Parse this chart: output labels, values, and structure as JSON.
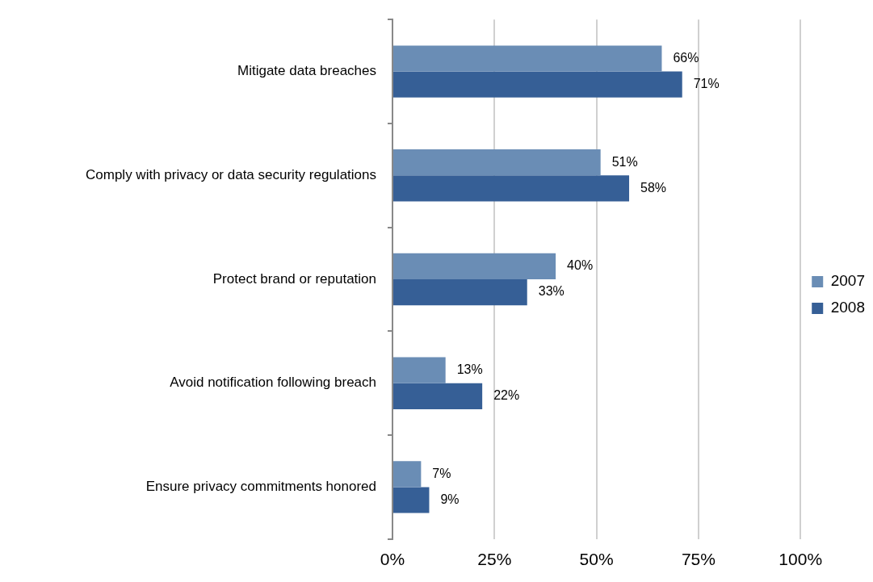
{
  "chart_data": {
    "type": "bar",
    "orientation": "horizontal",
    "categories": [
      "Mitigate data breaches",
      "Comply with privacy or data security regulations",
      "Protect brand or reputation",
      "Avoid notification following breach",
      "Ensure privacy commitments honored"
    ],
    "series": [
      {
        "name": "2007",
        "color": "#6a8db5",
        "values": [
          66,
          51,
          40,
          13,
          7
        ],
        "value_labels": [
          "66%",
          "51%",
          "40%",
          "13%",
          "7%"
        ]
      },
      {
        "name": "2008",
        "color": "#365f96",
        "values": [
          71,
          58,
          33,
          22,
          9
        ],
        "value_labels": [
          "71%",
          "58%",
          "33%",
          "22%",
          "9%"
        ]
      }
    ],
    "xlim": [
      0,
      100
    ],
    "xticks": [
      {
        "value": 0,
        "label": "0%"
      },
      {
        "value": 25,
        "label": "25%"
      },
      {
        "value": 50,
        "label": "50%"
      },
      {
        "value": 75,
        "label": "75%"
      },
      {
        "value": 100,
        "label": "100%"
      }
    ],
    "grid": "x",
    "legend": "right"
  }
}
